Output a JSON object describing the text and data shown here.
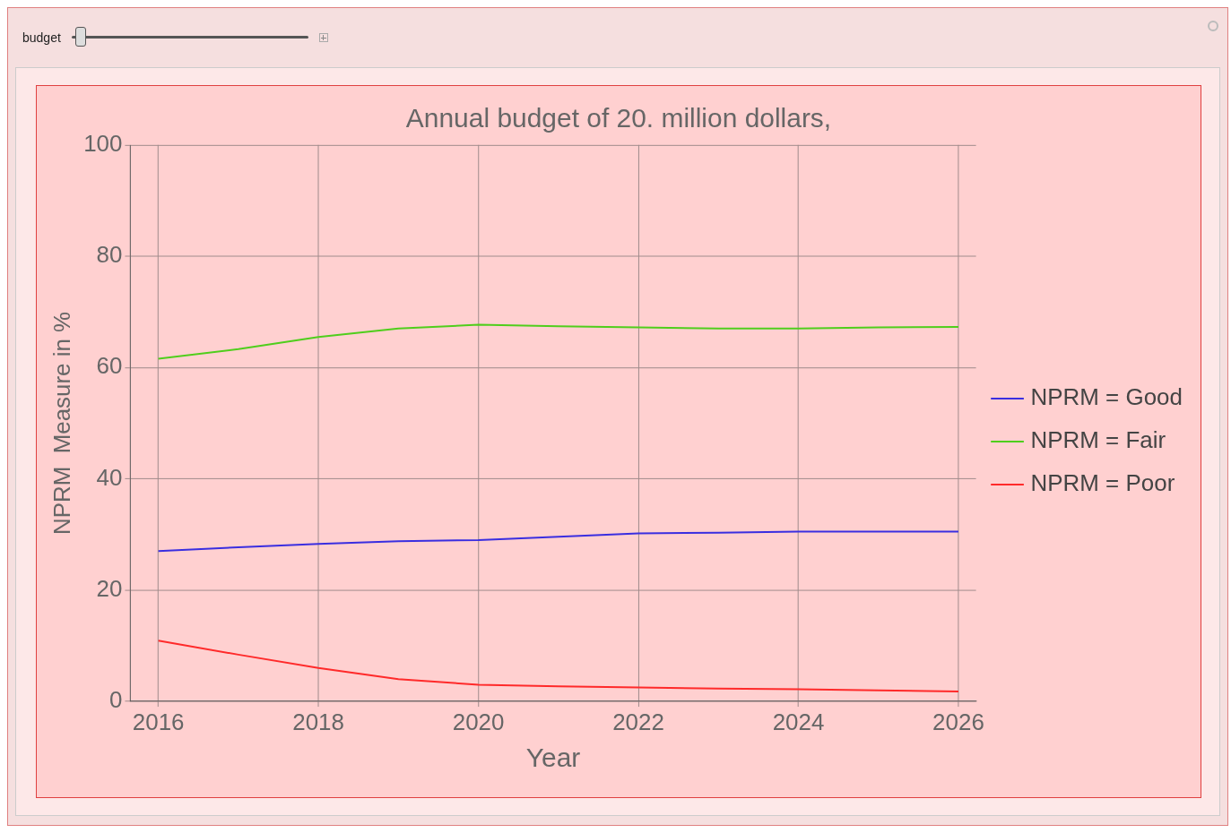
{
  "chart_data": {
    "type": "line",
    "title": "Annual budget of 20. million dollars,",
    "xlabel": "Year",
    "ylabel": "NPRM  Measure in %",
    "x": [
      2016,
      2017,
      2018,
      2019,
      2020,
      2021,
      2022,
      2023,
      2024,
      2025,
      2026
    ],
    "series": [
      {
        "name": "NPRM = Good",
        "color": "#3a2ee0",
        "values": [
          27.0,
          27.7,
          28.3,
          28.8,
          29.0,
          29.6,
          30.2,
          30.3,
          30.5,
          30.5,
          30.5
        ]
      },
      {
        "name": "NPRM = Fair",
        "color": "#4fce1c",
        "values": [
          61.6,
          63.3,
          65.5,
          67.0,
          67.7,
          67.4,
          67.2,
          67.0,
          67.0,
          67.2,
          67.3
        ]
      },
      {
        "name": "NPRM = Poor",
        "color": "#ff2a2a",
        "values": [
          10.9,
          8.4,
          6.0,
          4.0,
          3.0,
          2.7,
          2.5,
          2.3,
          2.2,
          2.0,
          1.8
        ]
      }
    ],
    "xlim": [
      2015.65,
      2026.22
    ],
    "xticks": [
      2016,
      2018,
      2020,
      2022,
      2024,
      2026
    ],
    "ylim": [
      0,
      100
    ],
    "yticks": [
      0,
      20,
      40,
      60,
      80,
      100
    ],
    "grid": true,
    "legend": "right",
    "marker": "none",
    "line_style": "solid",
    "annotations": [
      "budget"
    ]
  }
}
